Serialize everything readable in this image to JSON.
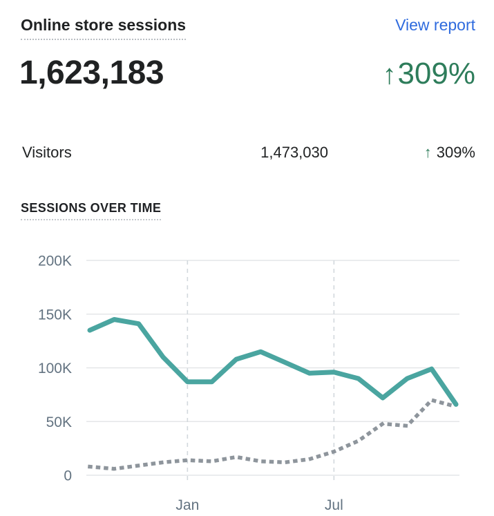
{
  "header": {
    "title": "Online store sessions",
    "link_label": "View report"
  },
  "metric": {
    "value": "1,623,183",
    "arrow": "↑",
    "change": "309%"
  },
  "breakdown_row": {
    "label": "Visitors",
    "value": "1,473,030",
    "arrow": "↑",
    "change": "309%"
  },
  "section_title": "SESSIONS OVER TIME",
  "colors": {
    "ink": "#202223",
    "link_blue": "#2f6bde",
    "accent_green": "#2e7d5b",
    "line_current": "#4aa5a0",
    "line_previous": "#8e959c",
    "grid": "#e4e6e8",
    "guide": "#d2d8dd",
    "axis_text": "#637381"
  },
  "chart_data": {
    "type": "line",
    "title": "SESSIONS OVER TIME",
    "xlabel": "",
    "ylabel": "",
    "ylim": [
      0,
      200000
    ],
    "grid": "horizontal",
    "legend_position": "none",
    "y_ticks": [
      {
        "value": 200000,
        "label": "200K"
      },
      {
        "value": 150000,
        "label": "150K"
      },
      {
        "value": 100000,
        "label": "100K"
      },
      {
        "value": 50000,
        "label": "50K"
      },
      {
        "value": 0,
        "label": "0"
      }
    ],
    "x_ticks": [
      {
        "index": 4,
        "label": "Jan"
      },
      {
        "index": 10,
        "label": "Jul"
      }
    ],
    "series": [
      {
        "id": "previous-period",
        "style": "dotted",
        "values": [
          8000,
          6000,
          9000,
          12000,
          14000,
          13000,
          17000,
          13000,
          12000,
          15000,
          22000,
          32000,
          48000,
          46000,
          70000,
          64000
        ]
      },
      {
        "id": "current-period",
        "style": "solid",
        "values": [
          135000,
          145000,
          141000,
          110000,
          87000,
          87000,
          108000,
          115000,
          105000,
          95000,
          96000,
          90000,
          72000,
          90000,
          99000,
          66000
        ]
      }
    ]
  }
}
